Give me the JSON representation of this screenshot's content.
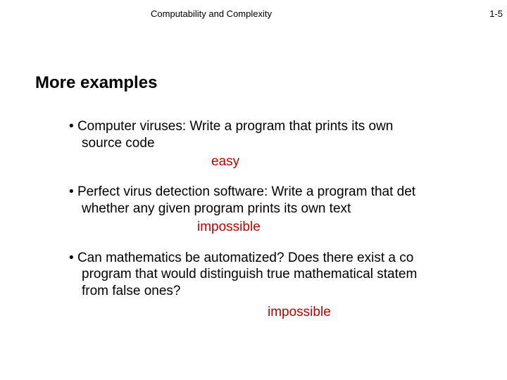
{
  "header": {
    "course": "Computability and Complexity",
    "page_number": "1-5"
  },
  "title": "More examples",
  "bullets": [
    {
      "line1": "Computer viruses:  Write a program that prints its own",
      "line2": "source code",
      "verdict": "easy"
    },
    {
      "line1": "Perfect virus detection software: Write a program that det",
      "line2": "whether any given program prints its own text",
      "verdict": "impossible"
    },
    {
      "line1": "Can mathematics be automatized? Does there exist a co",
      "line2": "program that would distinguish true mathematical statem",
      "line3": "from false ones?",
      "verdict": "impossible"
    }
  ],
  "colors": {
    "text": "#000000",
    "verdict": "#c00000",
    "background": "#ffffff"
  },
  "typography": {
    "header_fontsize": 13,
    "title_fontsize": 24,
    "body_fontsize": 19,
    "font_family": "Arial"
  }
}
